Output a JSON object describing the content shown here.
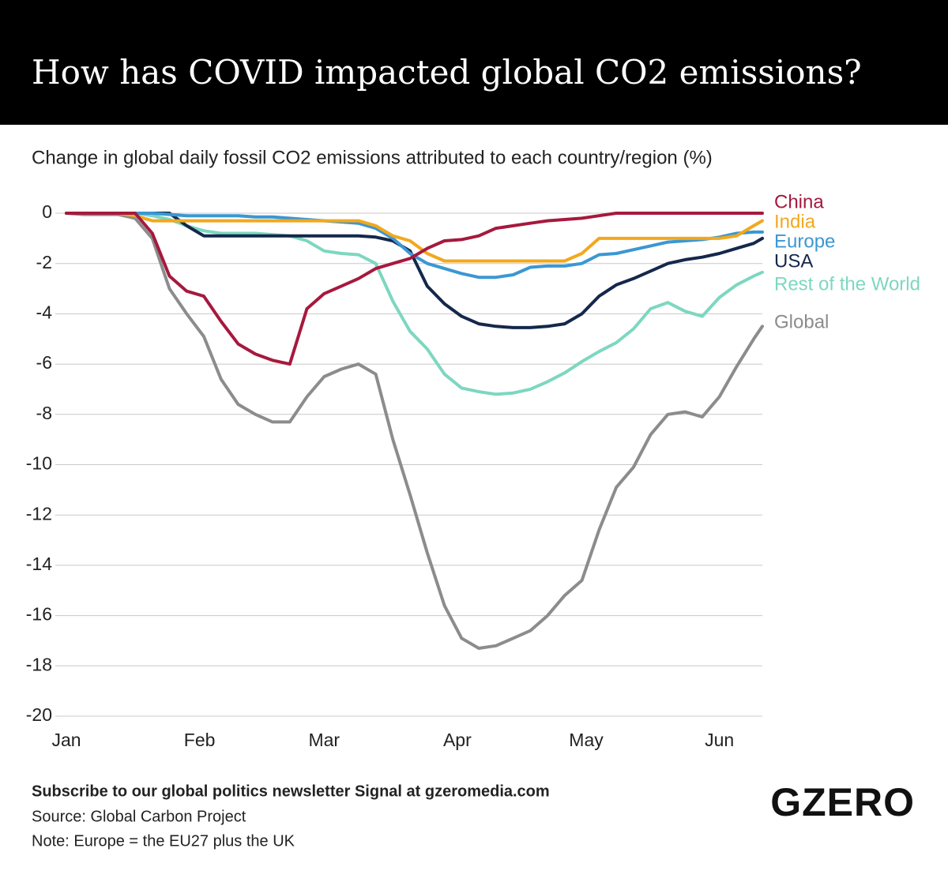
{
  "chart_data": {
    "type": "line",
    "title": "How has COVID impacted global CO2 emissions?",
    "subtitle": "Change in global daily fossil CO2 emissions attributed to each country/region (%)",
    "x": [
      0,
      4,
      8,
      12,
      16,
      20,
      24,
      28,
      32,
      36,
      40,
      44,
      48,
      52,
      56,
      60,
      64,
      68,
      72,
      76,
      80,
      84,
      88,
      92,
      96,
      100,
      104,
      108,
      112,
      116,
      120,
      124,
      128,
      132,
      136,
      140,
      144,
      148,
      152,
      156,
      160,
      162
    ],
    "xlim": [
      0,
      162
    ],
    "xticks": [
      {
        "value": 0,
        "label": "Jan"
      },
      {
        "value": 31,
        "label": "Feb"
      },
      {
        "value": 60,
        "label": "Mar"
      },
      {
        "value": 91,
        "label": "Apr"
      },
      {
        "value": 121,
        "label": "May"
      },
      {
        "value": 152,
        "label": "Jun"
      }
    ],
    "ylim": [
      -20,
      0
    ],
    "yticks": [
      0,
      -2,
      -4,
      -6,
      -8,
      -10,
      -12,
      -14,
      -16,
      -18,
      -20
    ],
    "grid": true,
    "series": [
      {
        "name": "China",
        "color": "#a6193e",
        "values": [
          0,
          0,
          0,
          0,
          0,
          -0.8,
          -2.5,
          -3.1,
          -3.3,
          -4.3,
          -5.2,
          -5.6,
          -5.85,
          -6.0,
          -3.8,
          -3.2,
          -2.9,
          -2.6,
          -2.2,
          -2.0,
          -1.8,
          -1.4,
          -1.1,
          -1.05,
          -0.9,
          -0.6,
          -0.5,
          -0.4,
          -0.3,
          -0.25,
          -0.2,
          -0.1,
          0,
          0,
          0,
          0,
          0,
          0,
          0,
          0,
          0,
          0
        ]
      },
      {
        "name": "India",
        "color": "#f2a81d",
        "values": [
          0,
          0,
          0,
          0,
          -0.1,
          -0.3,
          -0.3,
          -0.3,
          -0.3,
          -0.3,
          -0.3,
          -0.3,
          -0.3,
          -0.3,
          -0.3,
          -0.3,
          -0.3,
          -0.3,
          -0.5,
          -0.9,
          -1.1,
          -1.6,
          -1.9,
          -1.9,
          -1.9,
          -1.9,
          -1.9,
          -1.9,
          -1.9,
          -1.9,
          -1.6,
          -1.0,
          -1.0,
          -1.0,
          -1.0,
          -1.0,
          -1.0,
          -1.0,
          -1.0,
          -0.9,
          -0.5,
          -0.3
        ]
      },
      {
        "name": "Europe",
        "color": "#3b97d3",
        "values": [
          0,
          0,
          0,
          0,
          0,
          0,
          -0.05,
          -0.1,
          -0.1,
          -0.1,
          -0.1,
          -0.15,
          -0.15,
          -0.2,
          -0.25,
          -0.3,
          -0.35,
          -0.4,
          -0.6,
          -1.0,
          -1.6,
          -2.0,
          -2.2,
          -2.4,
          -2.55,
          -2.55,
          -2.45,
          -2.15,
          -2.1,
          -2.1,
          -2.0,
          -1.65,
          -1.6,
          -1.45,
          -1.3,
          -1.15,
          -1.1,
          -1.05,
          -0.95,
          -0.8,
          -0.75,
          -0.75
        ]
      },
      {
        "name": "USA",
        "color": "#14284b",
        "values": [
          0,
          0,
          0,
          0,
          0,
          0,
          0,
          -0.5,
          -0.9,
          -0.9,
          -0.9,
          -0.9,
          -0.9,
          -0.9,
          -0.9,
          -0.9,
          -0.9,
          -0.9,
          -0.95,
          -1.1,
          -1.5,
          -2.9,
          -3.6,
          -4.1,
          -4.4,
          -4.5,
          -4.55,
          -4.55,
          -4.5,
          -4.4,
          -4.0,
          -3.3,
          -2.85,
          -2.6,
          -2.3,
          -2.0,
          -1.85,
          -1.75,
          -1.6,
          -1.4,
          -1.2,
          -1.0
        ]
      },
      {
        "name": "Rest of the World",
        "color": "#7dd7c0",
        "values": [
          0,
          0,
          0,
          0,
          0,
          -0.1,
          -0.25,
          -0.5,
          -0.7,
          -0.8,
          -0.8,
          -0.8,
          -0.85,
          -0.9,
          -1.1,
          -1.5,
          -1.6,
          -1.65,
          -2.0,
          -3.5,
          -4.7,
          -5.4,
          -6.4,
          -6.95,
          -7.1,
          -7.2,
          -7.15,
          -7.0,
          -6.7,
          -6.35,
          -5.9,
          -5.5,
          -5.15,
          -4.6,
          -3.8,
          -3.55,
          -3.9,
          -4.1,
          -3.35,
          -2.85,
          -2.5,
          -2.35
        ]
      },
      {
        "name": "Global",
        "color": "#8c8c8c",
        "values": [
          0,
          -0.05,
          -0.05,
          -0.05,
          -0.2,
          -1.0,
          -3.0,
          -4.0,
          -4.9,
          -6.6,
          -7.6,
          -8.0,
          -8.3,
          -8.3,
          -7.3,
          -6.5,
          -6.2,
          -6.0,
          -6.4,
          -9.0,
          -11.2,
          -13.5,
          -15.6,
          -16.9,
          -17.3,
          -17.2,
          -16.9,
          -16.6,
          -16.0,
          -15.2,
          -14.6,
          -12.6,
          -10.9,
          -10.1,
          -8.8,
          -8.0,
          -7.9,
          -8.1,
          -7.3,
          -6.1,
          -5.0,
          -4.5
        ]
      }
    ]
  },
  "footer": {
    "subscribe": "Subscribe to our global politics newsletter Signal at gzeromedia.com",
    "source": "Source: Global Carbon Project",
    "note": "Note: Europe = the EU27 plus the UK",
    "logo": "GZERO"
  }
}
